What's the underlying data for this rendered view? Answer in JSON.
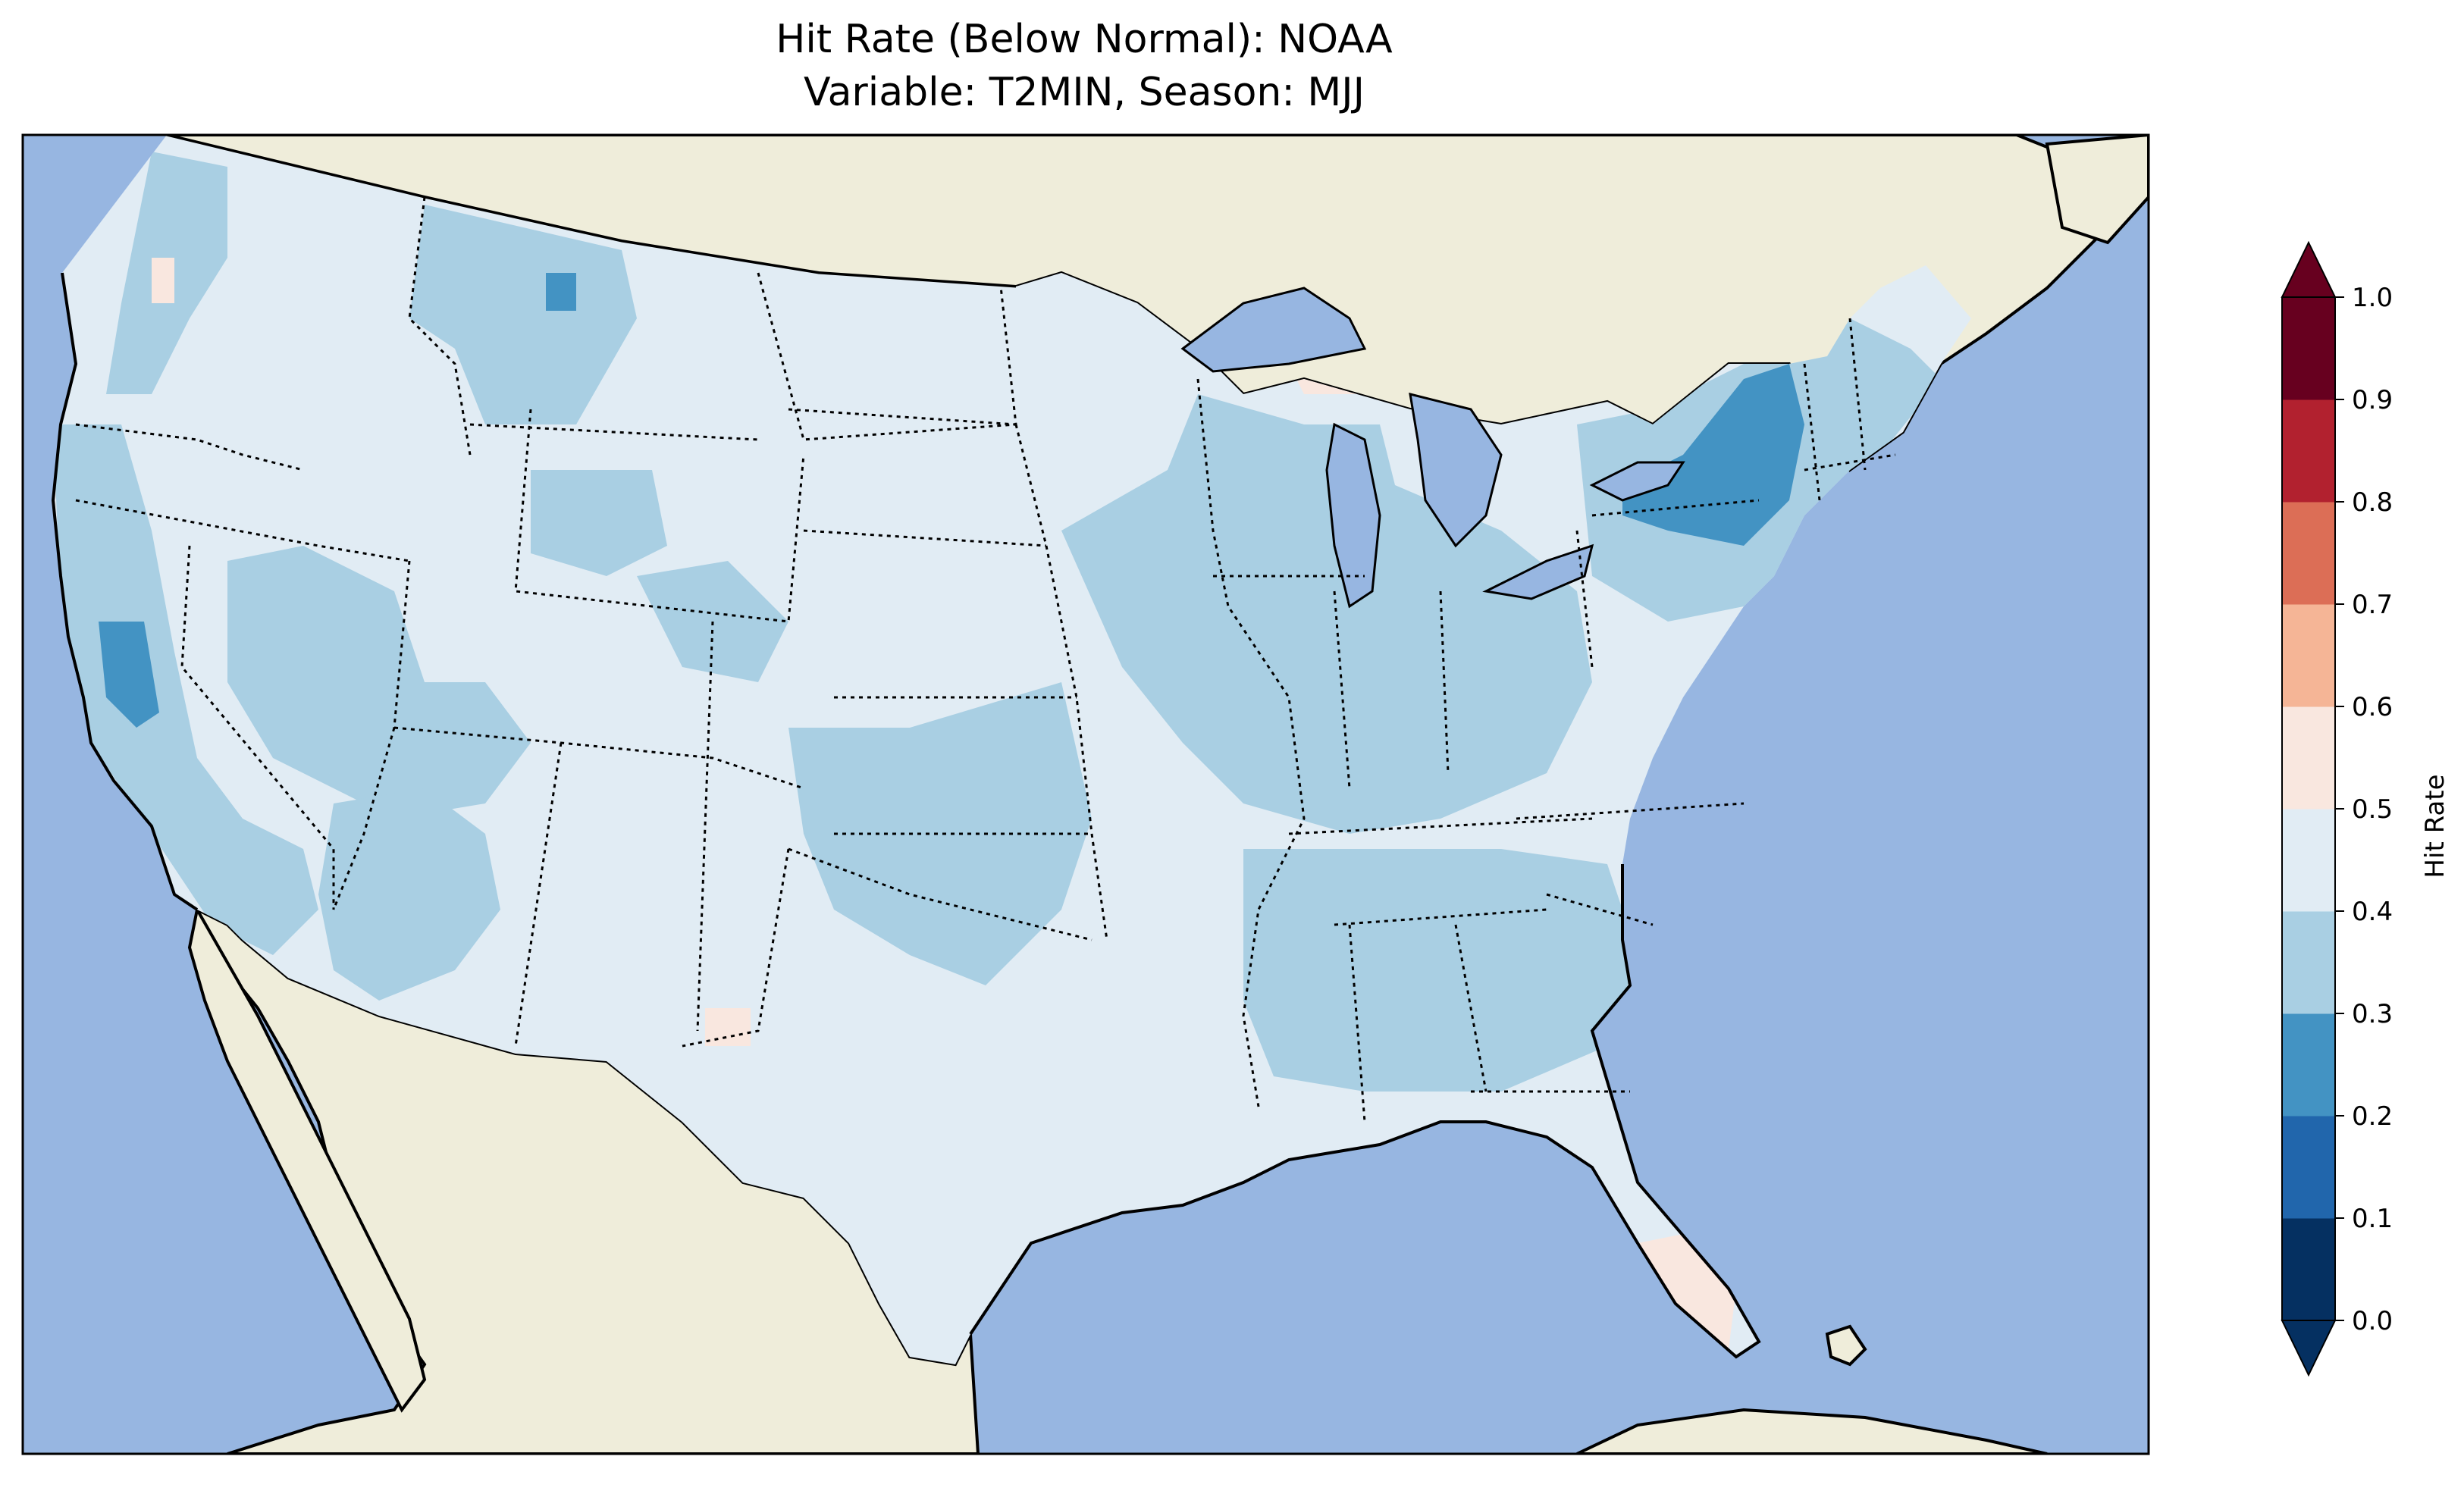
{
  "title": {
    "line1": "Hit Rate (Below Normal): NOAA",
    "line2": "Variable: T2MIN, Season: MJJ"
  },
  "colors": {
    "ocean": "#97b6e1",
    "land": "#efedda",
    "lakes": "#97b6e1"
  },
  "colorbar": {
    "label": "Hit Rate",
    "ticks": [
      "0.0",
      "0.1",
      "0.2",
      "0.3",
      "0.4",
      "0.5",
      "0.6",
      "0.7",
      "0.8",
      "0.9",
      "1.0"
    ],
    "bins": [
      {
        "lo": 0.0,
        "hi": 0.1,
        "color": "#053061"
      },
      {
        "lo": 0.1,
        "hi": 0.2,
        "color": "#2166ac"
      },
      {
        "lo": 0.2,
        "hi": 0.3,
        "color": "#4393c3"
      },
      {
        "lo": 0.3,
        "hi": 0.4,
        "color": "#a9cfe3"
      },
      {
        "lo": 0.4,
        "hi": 0.5,
        "color": "#e1ecf4"
      },
      {
        "lo": 0.5,
        "hi": 0.6,
        "color": "#f9e7df"
      },
      {
        "lo": 0.6,
        "hi": 0.7,
        "color": "#f5b596"
      },
      {
        "lo": 0.7,
        "hi": 0.8,
        "color": "#dc6e56"
      },
      {
        "lo": 0.8,
        "hi": 0.9,
        "color": "#b2212f"
      },
      {
        "lo": 0.9,
        "hi": 1.0,
        "color": "#67001f"
      }
    ],
    "extend": "both"
  },
  "regions": [
    {
      "name": "conus-base",
      "bin": "0.4-0.5"
    },
    {
      "name": "west-coast-band",
      "bin": "0.3-0.4"
    },
    {
      "name": "washington-cascades",
      "bin": "0.3-0.4"
    },
    {
      "name": "idaho-montana",
      "bin": "0.3-0.4"
    },
    {
      "name": "wyoming-patch",
      "bin": "0.3-0.4"
    },
    {
      "name": "great-basin-band",
      "bin": "0.3-0.4"
    },
    {
      "name": "southwest-desert",
      "bin": "0.3-0.4"
    },
    {
      "name": "colorado-patch",
      "bin": "0.3-0.4"
    },
    {
      "name": "south-central-plains",
      "bin": "0.3-0.4"
    },
    {
      "name": "midwest",
      "bin": "0.3-0.4"
    },
    {
      "name": "gulf-southeast",
      "bin": "0.3-0.4"
    },
    {
      "name": "northeast",
      "bin": "0.3-0.4"
    },
    {
      "name": "new-york-core",
      "bin": "0.2-0.3"
    },
    {
      "name": "central-california",
      "bin": "0.2-0.3"
    },
    {
      "name": "montana-spot",
      "bin": "0.2-0.3"
    },
    {
      "name": "south-florida",
      "bin": "0.5-0.6"
    },
    {
      "name": "upper-michigan",
      "bin": "0.5-0.6"
    },
    {
      "name": "oregon-coast",
      "bin": "0.5-0.6"
    },
    {
      "name": "new-mexico-spot",
      "bin": "0.5-0.6"
    }
  ]
}
